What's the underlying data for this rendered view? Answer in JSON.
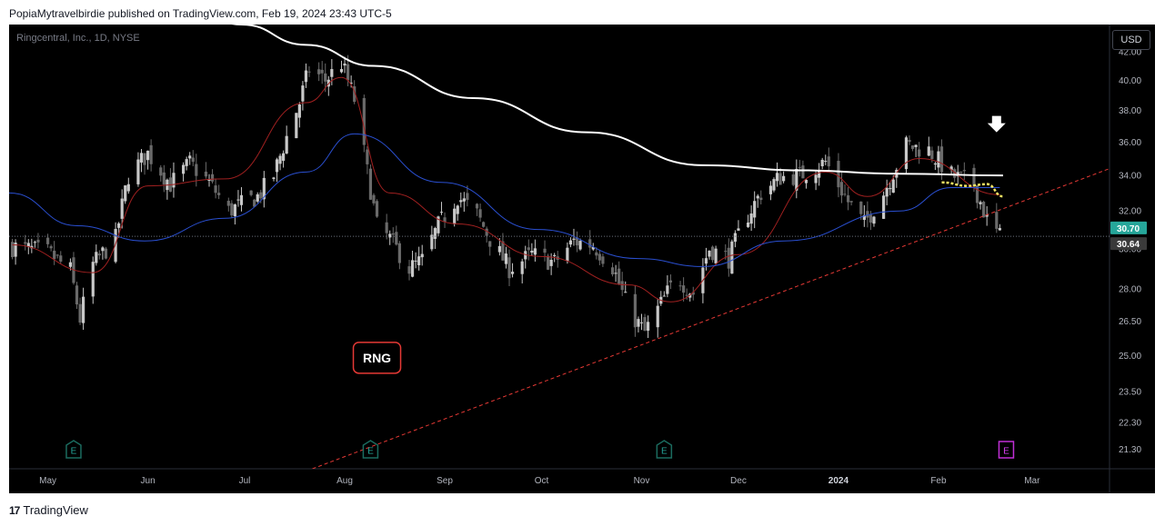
{
  "header": {
    "published_text": "PopiaMytravelbirdie published on TradingView.com, Feb 19, 2024 23:43 UTC-5"
  },
  "symbol_title": "Ringcentral, Inc., 1D, NYSE",
  "currency_button": "USD",
  "footer": {
    "brand": "TradingView",
    "logo_mark": "17"
  },
  "colors": {
    "background": "#000000",
    "up_candle": "#c8c8c8",
    "down_candle": "#6a6a6a",
    "ma_fast": "#a02020",
    "ma_mid": "#2a4fd0",
    "ma_slow": "#ffffff",
    "trendline": "#e53935",
    "highlight": "#f5e663",
    "last_price_label": "#26a69a",
    "earnings_past": "#1b6b5f",
    "earnings_future": "#c02fd6"
  },
  "chart_data": {
    "type": "candlestick",
    "title": "Ringcentral, Inc., 1D, NYSE",
    "currency": "USD",
    "y_scale": "log",
    "ylim": [
      20.6,
      44.0
    ],
    "x_range": [
      "2023-04-19",
      "2024-03-25"
    ],
    "y_ticks": [
      "42.00",
      "40.00",
      "38.00",
      "36.00",
      "34.00",
      "32.00",
      "30.00",
      "28.00",
      "26.50",
      "25.00",
      "23.50",
      "22.30",
      "21.30"
    ],
    "x_ticks": [
      "May",
      "Jun",
      "Jul",
      "Aug",
      "Sep",
      "Oct",
      "Nov",
      "Dec",
      "2024",
      "Feb",
      "Mar"
    ],
    "x_tick_dates": [
      "2023-05-01",
      "2023-06-01",
      "2023-07-01",
      "2023-08-01",
      "2023-09-01",
      "2023-10-01",
      "2023-11-01",
      "2023-12-01",
      "2024-01-01",
      "2024-02-01",
      "2024-03-01"
    ],
    "price_labels": [
      {
        "value": 30.7,
        "text": "30.70",
        "color": "#26a69a"
      },
      {
        "value": 30.64,
        "text": "30.64",
        "color": "#3a3a3a"
      }
    ],
    "last_close_line": 30.64,
    "close_points": [
      [
        "2023-04-20",
        30.1
      ],
      [
        "2023-05-01",
        29.8
      ],
      [
        "2023-05-08",
        28.9
      ],
      [
        "2023-05-11",
        26.6
      ],
      [
        "2023-05-15",
        29.2
      ],
      [
        "2023-05-22",
        30.5
      ],
      [
        "2023-05-26",
        34.0
      ],
      [
        "2023-06-01",
        35.3
      ],
      [
        "2023-06-08",
        33.5
      ],
      [
        "2023-06-14",
        34.7
      ],
      [
        "2023-06-20",
        33.6
      ],
      [
        "2023-06-26",
        32.0
      ],
      [
        "2023-07-05",
        32.8
      ],
      [
        "2023-07-10",
        34.0
      ],
      [
        "2023-07-14",
        36.3
      ],
      [
        "2023-07-18",
        38.5
      ],
      [
        "2023-07-21",
        40.8
      ],
      [
        "2023-07-26",
        40.0
      ],
      [
        "2023-07-31",
        41.2
      ],
      [
        "2023-08-04",
        38.7
      ],
      [
        "2023-08-08",
        34.2
      ],
      [
        "2023-08-11",
        31.2
      ],
      [
        "2023-08-15",
        30.5
      ],
      [
        "2023-08-21",
        29.0
      ],
      [
        "2023-08-25",
        29.4
      ],
      [
        "2023-08-30",
        31.2
      ],
      [
        "2023-09-05",
        32.8
      ],
      [
        "2023-09-11",
        31.8
      ],
      [
        "2023-09-15",
        30.5
      ],
      [
        "2023-09-21",
        29.0
      ],
      [
        "2023-09-28",
        29.7
      ],
      [
        "2023-10-05",
        29.3
      ],
      [
        "2023-10-11",
        30.4
      ],
      [
        "2023-10-17",
        30.2
      ],
      [
        "2023-10-23",
        29.1
      ],
      [
        "2023-10-28",
        27.0
      ],
      [
        "2023-11-02",
        26.0
      ],
      [
        "2023-11-07",
        27.3
      ],
      [
        "2023-11-12",
        28.6
      ],
      [
        "2023-11-17",
        27.8
      ],
      [
        "2023-11-22",
        30.0
      ],
      [
        "2023-11-28",
        29.5
      ],
      [
        "2023-12-03",
        31.5
      ],
      [
        "2023-12-08",
        33.0
      ],
      [
        "2023-12-14",
        33.9
      ],
      [
        "2023-12-20",
        34.0
      ],
      [
        "2023-12-28",
        34.8
      ],
      [
        "2024-01-04",
        32.5
      ],
      [
        "2024-01-09",
        31.3
      ],
      [
        "2024-01-15",
        33.0
      ],
      [
        "2024-01-22",
        35.8
      ],
      [
        "2024-01-29",
        35.5
      ],
      [
        "2024-02-05",
        34.0
      ],
      [
        "2024-02-12",
        33.5
      ],
      [
        "2024-02-16",
        31.5
      ],
      [
        "2024-02-20",
        30.64
      ]
    ],
    "moving_averages": [
      {
        "name": "MA fast",
        "color": "#a02020",
        "points": [
          [
            "2023-04-20",
            30.2
          ],
          [
            "2023-05-15",
            28.8
          ],
          [
            "2023-06-01",
            33.4
          ],
          [
            "2023-06-25",
            33.8
          ],
          [
            "2023-07-20",
            38.5
          ],
          [
            "2023-07-31",
            40.2
          ],
          [
            "2023-08-15",
            33.0
          ],
          [
            "2023-09-05",
            31.3
          ],
          [
            "2023-10-01",
            29.6
          ],
          [
            "2023-10-28",
            28.2
          ],
          [
            "2023-11-10",
            27.4
          ],
          [
            "2023-12-01",
            29.7
          ],
          [
            "2023-12-28",
            34.2
          ],
          [
            "2024-01-10",
            32.8
          ],
          [
            "2024-01-26",
            35.0
          ],
          [
            "2024-02-20",
            32.9
          ]
        ]
      },
      {
        "name": "MA mid",
        "color": "#2a4fd0",
        "points": [
          [
            "2023-04-19",
            33.0
          ],
          [
            "2023-05-10",
            31.2
          ],
          [
            "2023-05-31",
            30.4
          ],
          [
            "2023-06-25",
            31.6
          ],
          [
            "2023-07-20",
            34.2
          ],
          [
            "2023-08-04",
            36.5
          ],
          [
            "2023-08-31",
            33.6
          ],
          [
            "2023-09-30",
            31.0
          ],
          [
            "2023-10-31",
            29.5
          ],
          [
            "2023-11-20",
            29.1
          ],
          [
            "2023-12-15",
            30.4
          ],
          [
            "2024-01-20",
            32.0
          ],
          [
            "2024-02-05",
            33.3
          ],
          [
            "2024-02-20",
            33.3
          ]
        ]
      },
      {
        "name": "MA slow",
        "color": "#ffffff",
        "points": [
          [
            "2023-06-15",
            45.0
          ],
          [
            "2023-06-30",
            44.0
          ],
          [
            "2023-07-20",
            42.5
          ],
          [
            "2023-08-10",
            41.0
          ],
          [
            "2023-09-10",
            38.8
          ],
          [
            "2023-10-15",
            36.6
          ],
          [
            "2023-11-20",
            34.6
          ],
          [
            "2023-12-20",
            34.3
          ],
          [
            "2024-01-20",
            34.1
          ],
          [
            "2024-02-21",
            34.0
          ]
        ]
      }
    ],
    "highlight_segment": {
      "color": "#f5e663",
      "points": [
        [
          "2024-02-02",
          33.6
        ],
        [
          "2024-02-10",
          33.4
        ],
        [
          "2024-02-16",
          33.5
        ],
        [
          "2024-02-21",
          32.8
        ]
      ]
    },
    "trendline": {
      "color": "#e53935",
      "style": "dashed",
      "points": [
        [
          "2023-07-22",
          20.6
        ],
        [
          "2024-03-25",
          34.4
        ]
      ]
    },
    "earnings_markers": [
      {
        "date": "2023-05-09",
        "label": "E",
        "kind": "past"
      },
      {
        "date": "2023-08-09",
        "label": "E",
        "kind": "past"
      },
      {
        "date": "2023-11-08",
        "label": "E",
        "kind": "past"
      },
      {
        "date": "2024-02-22",
        "label": "E",
        "kind": "upcoming"
      }
    ],
    "annotations": [
      {
        "type": "label",
        "text": "RNG",
        "date": "2023-08-11",
        "value": 24.9
      },
      {
        "type": "arrow-down",
        "date": "2024-02-19",
        "value": 37.0
      }
    ]
  }
}
